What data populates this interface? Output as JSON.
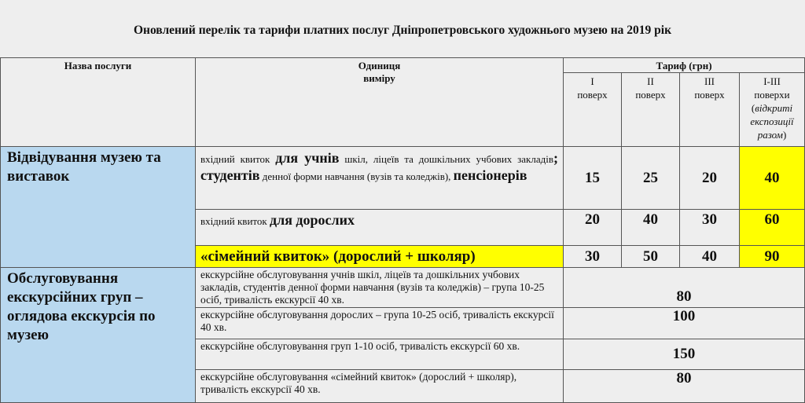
{
  "title": "Оновлений перелік та тарифи платних послуг Дніпропетровського художнього музею на 2019 рік",
  "header": {
    "name": "Назва послуги",
    "unit_line1": "Одиниця",
    "unit_line2": "виміру",
    "tariff": "Тариф (грн)",
    "floors": [
      {
        "n": "I",
        "l": "поверх"
      },
      {
        "n": "II",
        "l": "поверх"
      },
      {
        "n": "III",
        "l": "поверх"
      },
      {
        "n": "I-III",
        "l": "поверхи",
        "note_open": "(",
        "note": "відкриті експозиції разом",
        "note_close": ")"
      }
    ]
  },
  "visits": {
    "name": "Відвідування музею та виставок",
    "row1": {
      "p1": "вхідний квиток ",
      "b1": "для учнів",
      "p2": " шкіл, ліцеїв та дошкільних учбових закладів",
      "b2": "; студентів",
      "p3": " денної форми навчання (вузів та коледжів), ",
      "b3": "пенсіонерів",
      "prices": [
        "15",
        "25",
        "20",
        "40"
      ]
    },
    "row2": {
      "p1": "вхідний квиток ",
      "b1": "для дорослих",
      "prices": [
        "20",
        "40",
        "30",
        "60"
      ]
    },
    "row3": {
      "label": "«сімейний квиток» (дорослий + школяр)",
      "prices": [
        "30",
        "50",
        "40",
        "90"
      ]
    }
  },
  "excursions": {
    "name": "Обслуговування екскурсійних груп – оглядова екскурсія по музею",
    "rows": [
      {
        "unit": "екскурсійне обслуговування учнів шкіл, ліцеїв та дошкільних учбових закладів, студентів денної форми навчання (вузів та коледжів) – група 10-25 осіб, тривалість екскурсії 40 хв.",
        "price": "80"
      },
      {
        "unit": "екскурсійне обслуговування дорослих – група 10-25 осіб, тривалість екскурсії 40 хв.",
        "price": "100"
      },
      {
        "unit": "екскурсійне обслуговування груп 1-10 осіб, тривалість екскурсії 60 хв.",
        "price": "150"
      },
      {
        "unit": "екскурсійне обслуговування «сімейний квиток» (дорослий + школяр), тривалість екскурсії 40 хв.",
        "price": "80"
      }
    ]
  },
  "colors": {
    "background": "#eeeeee",
    "name_cell": "#b9d8ef",
    "highlight": "#ffff00"
  }
}
